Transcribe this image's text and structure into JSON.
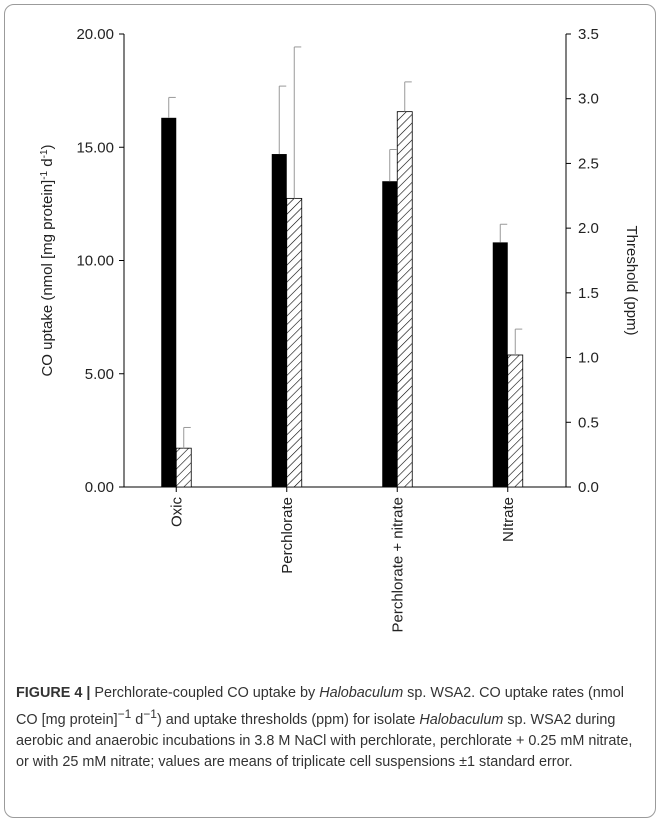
{
  "chart_data": {
    "type": "bar",
    "categories": [
      "Oxic",
      "Perchlorate",
      "Perchlorate + nitrate",
      "NItrate"
    ],
    "series": [
      {
        "axis": "left",
        "color": "#000000",
        "pattern": "solid",
        "values": [
          16.3,
          14.7,
          13.5,
          10.8
        ],
        "errors": [
          0.9,
          3.0,
          1.4,
          0.8
        ]
      },
      {
        "axis": "right",
        "color": "#ffffff",
        "pattern": "diagonal-hatch",
        "values": [
          0.3,
          2.23,
          2.9,
          1.02
        ],
        "errors": [
          0.16,
          1.17,
          0.23,
          0.2
        ]
      }
    ],
    "y_left": {
      "ylabel_parts": [
        "CO uptake (nmol [mg protein]",
        "-1",
        " d",
        "-1",
        ")"
      ],
      "ylim": [
        0,
        20
      ],
      "ticks": [
        "0.00",
        "5.00",
        "10.00",
        "15.00",
        "20.00"
      ]
    },
    "y_right": {
      "ylabel": "Threshold (ppm)",
      "ylim": [
        0,
        3.5
      ],
      "ticks": [
        "0.0",
        "0.5",
        "1.0",
        "1.5",
        "2.0",
        "2.5",
        "3.0",
        "3.5"
      ]
    }
  },
  "caption": {
    "fig_label": "FIGURE 4 |",
    "t1": " Perchlorate-coupled CO uptake by ",
    "t1_italic": "Halobaculum",
    "t2": " sp. WSA2. CO uptake rates (nmol CO [mg protein]",
    "t2_sup": "−1",
    "t3": " d",
    "t3_sup": "−1",
    "t4": ") and uptake thresholds (ppm) for isolate ",
    "t4_italic": "Halobaculum",
    "t5": " sp. WSA2 during aerobic and anaerobic incubations in 3.8 M NaCl with perchlorate, perchlorate + 0.25 mM nitrate, or with 25 mM nitrate; values are means of triplicate cell suspensions ±1 standard error."
  }
}
